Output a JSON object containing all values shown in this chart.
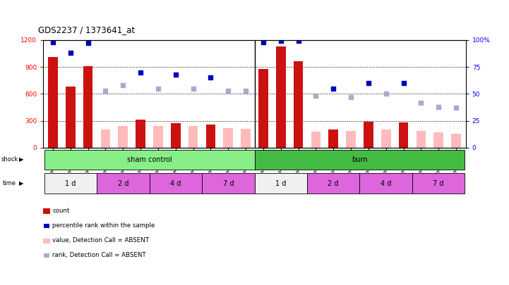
{
  "title": "GDS2237 / 1373641_at",
  "samples": [
    "GSM32414",
    "GSM32415",
    "GSM32416",
    "GSM32423",
    "GSM32424",
    "GSM32425",
    "GSM32429",
    "GSM32430",
    "GSM32431",
    "GSM32435",
    "GSM32436",
    "GSM32437",
    "GSM32417",
    "GSM32418",
    "GSM32419",
    "GSM32420",
    "GSM32421",
    "GSM32422",
    "GSM32426",
    "GSM32427",
    "GSM32428",
    "GSM32432",
    "GSM32433",
    "GSM32434"
  ],
  "count_present": [
    1010,
    680,
    910,
    0,
    0,
    310,
    0,
    270,
    0,
    260,
    0,
    0,
    880,
    1130,
    960,
    0,
    200,
    0,
    290,
    0,
    280,
    0,
    0,
    0
  ],
  "count_absent": [
    0,
    0,
    0,
    205,
    240,
    0,
    240,
    0,
    240,
    0,
    220,
    210,
    0,
    0,
    0,
    180,
    0,
    185,
    0,
    200,
    0,
    185,
    175,
    155
  ],
  "rank_present": [
    98,
    88,
    97,
    0,
    0,
    70,
    0,
    68,
    0,
    65,
    0,
    0,
    98,
    99,
    99,
    0,
    55,
    0,
    60,
    0,
    60,
    0,
    0,
    0
  ],
  "rank_absent": [
    0,
    0,
    0,
    53,
    58,
    0,
    55,
    0,
    55,
    0,
    53,
    53,
    0,
    0,
    0,
    48,
    0,
    47,
    0,
    50,
    0,
    42,
    38,
    37
  ],
  "present_mask": [
    true,
    true,
    true,
    false,
    false,
    true,
    false,
    true,
    false,
    true,
    false,
    false,
    true,
    true,
    true,
    false,
    true,
    false,
    true,
    false,
    true,
    false,
    false,
    false
  ],
  "sham_count": 12,
  "burn_count": 12,
  "ylim_left": [
    0,
    1200
  ],
  "ylim_right": [
    0,
    100
  ],
  "yticks_left": [
    0,
    300,
    600,
    900,
    1200
  ],
  "yticks_right": [
    0,
    25,
    50,
    75,
    100
  ],
  "bar_color_present": "#cc1111",
  "bar_color_absent": "#ffbbbb",
  "dot_color_present": "#0000bb",
  "dot_color_absent": "#aaaacc",
  "sham_color": "#88ee88",
  "burn_color": "#44bb44",
  "time_color_1d_sham": "#f0f0f0",
  "time_color_other_sham": "#dd66dd",
  "time_color_1d_burn": "#f0f0f0",
  "time_color_other_burn": "#dd66dd",
  "background_color": "#ffffff",
  "time_defs": [
    [
      0,
      3,
      "1 d",
      "#f0f0f0"
    ],
    [
      3,
      6,
      "2 d",
      "#dd66dd"
    ],
    [
      6,
      9,
      "4 d",
      "#dd66dd"
    ],
    [
      9,
      12,
      "7 d",
      "#dd66dd"
    ],
    [
      12,
      15,
      "1 d",
      "#f0f0f0"
    ],
    [
      15,
      18,
      "2 d",
      "#dd66dd"
    ],
    [
      18,
      21,
      "4 d",
      "#dd66dd"
    ],
    [
      21,
      24,
      "7 d",
      "#dd66dd"
    ]
  ]
}
